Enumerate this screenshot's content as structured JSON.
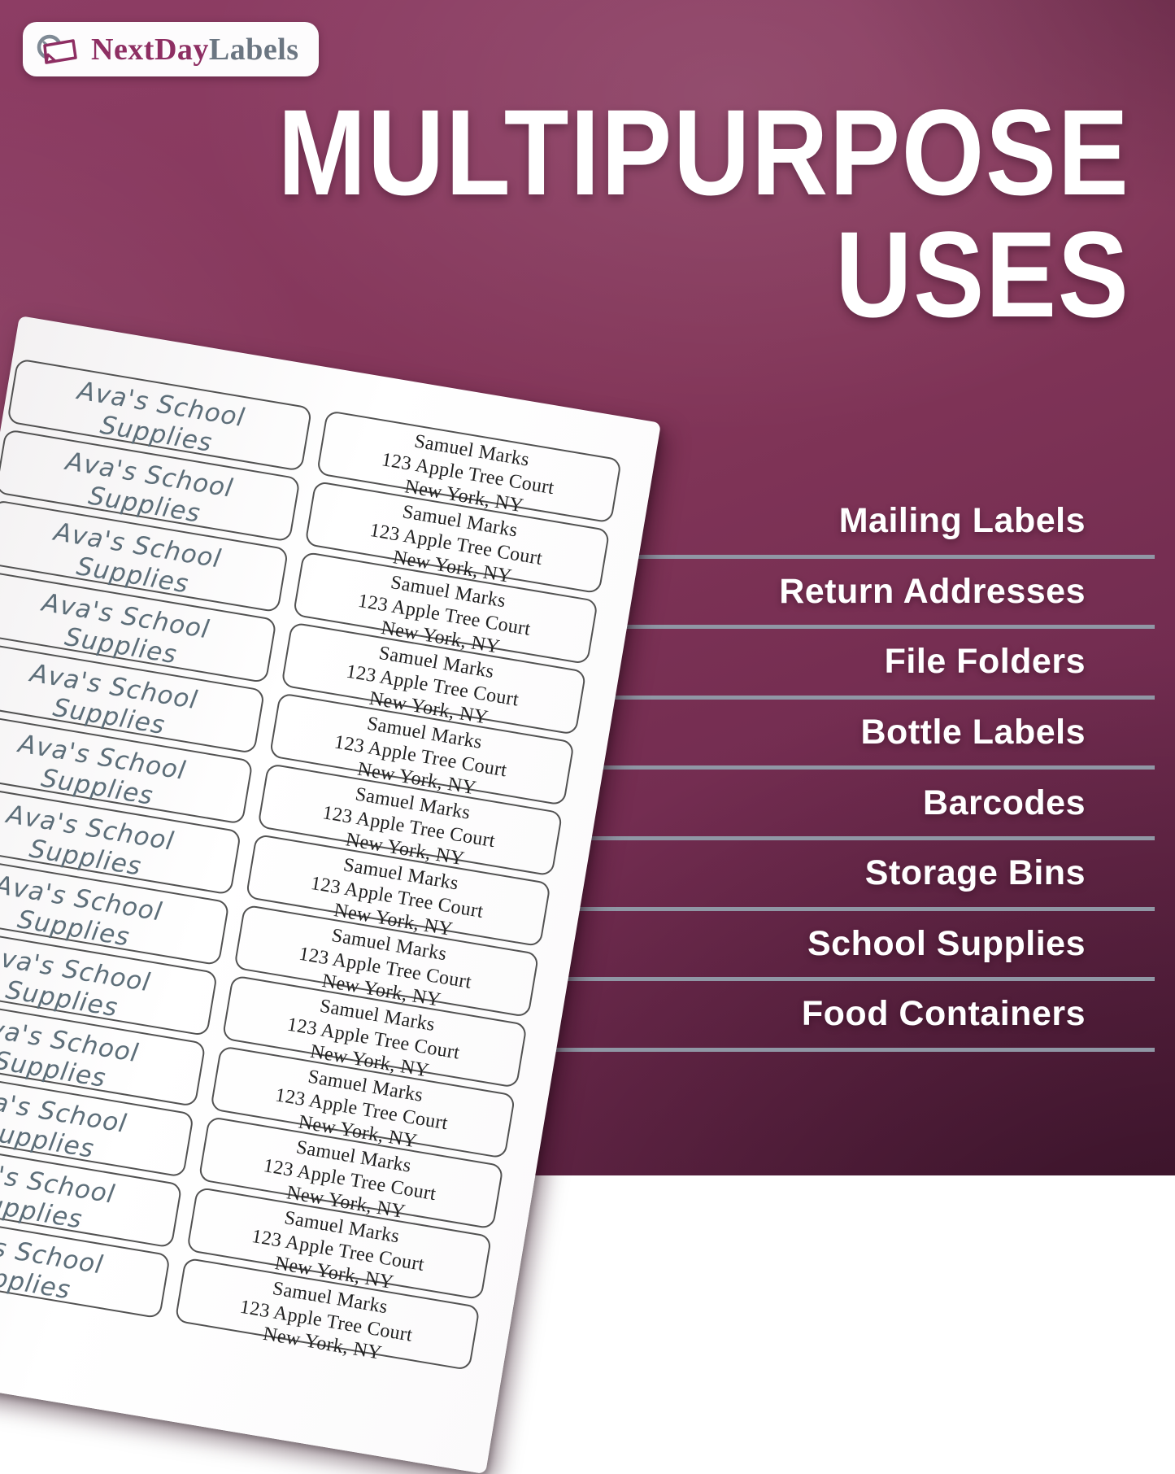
{
  "logo": {
    "brand_primary": "NextDay",
    "brand_secondary": "Labels",
    "icon": "clock-label-icon"
  },
  "title": {
    "line1": "MULTIPURPOSE",
    "line2": "USES"
  },
  "uses_list": {
    "items": [
      "Mailing Labels",
      "Return Addresses",
      "File Folders",
      "Bottle Labels",
      "Barcodes",
      "Storage Bins",
      "School Supplies",
      "Food Containers"
    ]
  },
  "label_sheet": {
    "rows": 13,
    "custom_label_lines": [
      "Ava's School",
      "Supplies"
    ],
    "address_label_lines": [
      "Samuel Marks",
      "123 Apple Tree Court",
      "New York, NY"
    ]
  },
  "colors": {
    "background_base": "#7c3156",
    "accent_magenta": "#8e2f63",
    "logo_gray": "#6b7682",
    "divider": "#9097a5",
    "handwriting_ink": "#5d6e79",
    "address_text": "#222222",
    "title_text": "#ffffff"
  }
}
